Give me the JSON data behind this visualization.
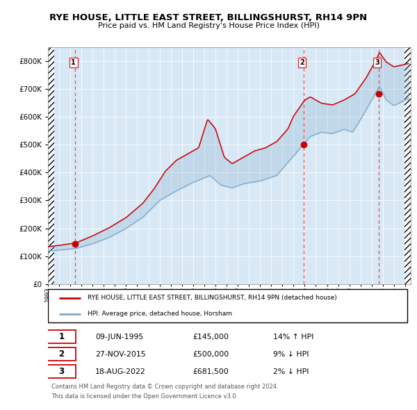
{
  "title_line1": "RYE HOUSE, LITTLE EAST STREET, BILLINGSHURST, RH14 9PN",
  "title_line2": "Price paid vs. HM Land Registry's House Price Index (HPI)",
  "bg_color": "#d8e8f5",
  "hpi_line_color": "#7faacc",
  "property_line_color": "#cc0000",
  "marker_color": "#cc0000",
  "vline_color": "#dd3333",
  "ylim": [
    0,
    850000
  ],
  "ytick_values": [
    0,
    100000,
    200000,
    300000,
    400000,
    500000,
    600000,
    700000,
    800000
  ],
  "sale1_date": 1995.44,
  "sale1_price": 145000,
  "sale2_date": 2015.91,
  "sale2_price": 500000,
  "sale3_date": 2022.63,
  "sale3_price": 681500,
  "legend_property": "RYE HOUSE, LITTLE EAST STREET, BILLINGSHURST, RH14 9PN (detached house)",
  "legend_hpi": "HPI: Average price, detached house, Horsham",
  "table_rows": [
    {
      "num": "1",
      "date": "09-JUN-1995",
      "price": "£145,000",
      "hpi": "14% ↑ HPI"
    },
    {
      "num": "2",
      "date": "27-NOV-2015",
      "price": "£500,000",
      "hpi": "9% ↓ HPI"
    },
    {
      "num": "3",
      "date": "18-AUG-2022",
      "price": "£681,500",
      "hpi": "2% ↓ HPI"
    }
  ],
  "footer_line1": "Contains HM Land Registry data © Crown copyright and database right 2024.",
  "footer_line2": "This data is licensed under the Open Government Licence v3.0.",
  "xmin": 1993.0,
  "xmax": 2025.5
}
